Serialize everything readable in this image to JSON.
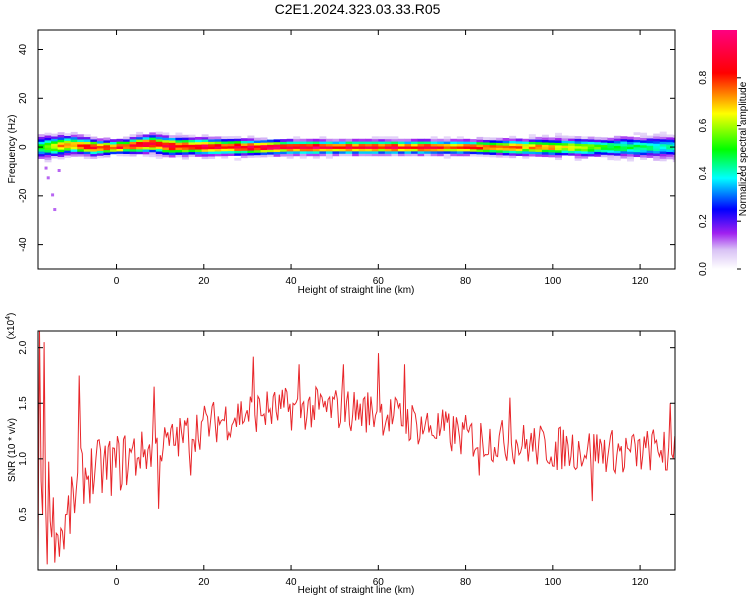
{
  "title": "C2E1.2024.323.03.33.R05",
  "chart_data": [
    {
      "type": "heatmap",
      "xlabel": "Height of straight line (km)",
      "ylabel": "Frequency (Hz)",
      "xlim": [
        -18,
        128
      ],
      "ylim": [
        -50,
        48
      ],
      "x_ticks": [
        0,
        20,
        40,
        60,
        80,
        100,
        120
      ],
      "y_ticks": [
        -40,
        -20,
        0,
        20,
        40
      ],
      "colorbar": {
        "label": "Normalized spectral amplitude",
        "ticks": [
          0.0,
          0.2,
          0.4,
          0.6,
          0.8
        ],
        "range": [
          0,
          1
        ],
        "colormap": [
          "#ffffff",
          "#a020f0",
          "#0000ff",
          "#00ffff",
          "#00ff00",
          "#ffff00",
          "#ff0000",
          "#ff0080"
        ]
      },
      "band": {
        "center_hz": [
          [
            -18,
            0
          ],
          [
            -10,
            1
          ],
          [
            -5,
            0
          ],
          [
            0,
            0
          ],
          [
            8,
            1.5
          ],
          [
            12,
            0.5
          ],
          [
            30,
            0
          ],
          [
            60,
            0
          ],
          [
            90,
            0
          ],
          [
            110,
            0
          ],
          [
            128,
            0
          ]
        ],
        "halfwidth_hz": [
          [
            -18,
            5
          ],
          [
            -10,
            4
          ],
          [
            0,
            3
          ],
          [
            10,
            4
          ],
          [
            40,
            3
          ],
          [
            80,
            3
          ],
          [
            110,
            4
          ],
          [
            128,
            5
          ]
        ],
        "peak_amplitude": [
          [
            -18,
            0.55
          ],
          [
            -12,
            0.8
          ],
          [
            -5,
            0.9
          ],
          [
            10,
            0.95
          ],
          [
            40,
            1.0
          ],
          [
            70,
            0.95
          ],
          [
            100,
            0.75
          ],
          [
            115,
            0.55
          ],
          [
            128,
            0.45
          ]
        ]
      }
    },
    {
      "type": "line",
      "xlabel": "Height of straight line (km)",
      "ylabel": "SNR (10 * v/v)",
      "y_multiplier": "(x10",
      "y_multiplier_exp": "4",
      "xlim": [
        -18,
        128
      ],
      "ylim": [
        0,
        2.15
      ],
      "x_ticks": [
        0,
        20,
        40,
        60,
        80,
        100,
        120
      ],
      "y_ticks": [
        0.5,
        1.0,
        1.5,
        2.0
      ],
      "line_color": "#e8262a",
      "trend": [
        [
          -18,
          0.35
        ],
        [
          -16,
          0.9
        ],
        [
          -14,
          0.3
        ],
        [
          -12,
          0.35
        ],
        [
          -8,
          0.85
        ],
        [
          -4,
          0.9
        ],
        [
          0,
          0.95
        ],
        [
          5,
          1.05
        ],
        [
          10,
          1.1
        ],
        [
          20,
          1.3
        ],
        [
          30,
          1.42
        ],
        [
          40,
          1.45
        ],
        [
          50,
          1.45
        ],
        [
          60,
          1.42
        ],
        [
          70,
          1.3
        ],
        [
          80,
          1.2
        ],
        [
          90,
          1.15
        ],
        [
          100,
          1.1
        ],
        [
          110,
          1.08
        ],
        [
          120,
          1.05
        ],
        [
          128,
          1.15
        ]
      ],
      "spikes": [
        [
          -17.5,
          2.15
        ],
        [
          -16.5,
          2.05
        ],
        [
          -8.5,
          1.75
        ],
        [
          8.5,
          1.65
        ],
        [
          31.5,
          1.92
        ],
        [
          42,
          1.85
        ],
        [
          60,
          1.95
        ],
        [
          52,
          1.85
        ],
        [
          66,
          1.85
        ],
        [
          90,
          1.55
        ],
        [
          127,
          1.5
        ]
      ],
      "dips": [
        [
          -16,
          0.05
        ],
        [
          -13,
          0.12
        ],
        [
          9.5,
          0.55
        ],
        [
          17,
          0.85
        ],
        [
          83,
          0.85
        ],
        [
          101,
          0.9
        ],
        [
          109,
          0.62
        ],
        [
          116,
          0.88
        ],
        [
          126,
          0.9
        ]
      ]
    }
  ]
}
